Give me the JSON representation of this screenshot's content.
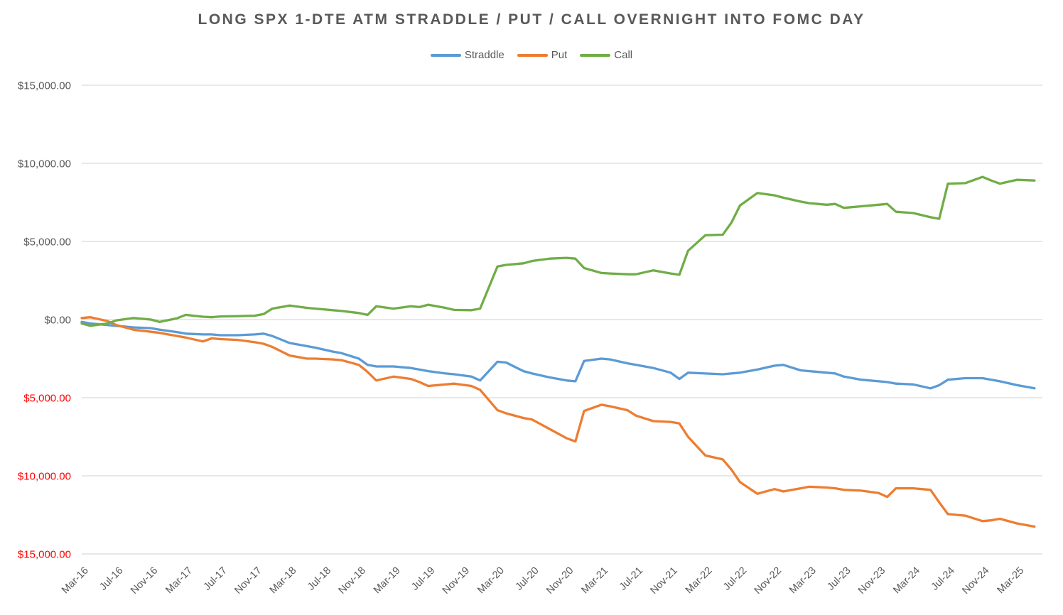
{
  "title": "LONG SPX 1-DTE ATM STRADDLE / PUT / CALL OVERNIGHT INTO FOMC DAY",
  "chart_data": {
    "type": "line",
    "x_unit": "months since Mar-2016 (points approximate FOMC meeting dates)",
    "x": [
      0,
      1,
      3,
      4,
      6,
      8,
      9,
      11,
      12,
      14,
      15,
      16,
      18,
      20,
      21,
      22,
      24,
      26,
      27,
      29,
      30,
      32,
      33,
      34,
      36,
      38,
      39,
      40,
      42,
      43,
      45,
      46,
      48,
      49,
      51,
      52,
      54,
      56,
      57,
      58,
      60,
      61,
      63,
      64,
      66,
      68,
      69,
      70,
      72,
      74,
      75,
      76,
      78,
      80,
      81,
      83,
      84,
      86,
      87,
      88,
      90,
      92,
      93,
      94,
      96,
      98,
      99,
      100,
      102,
      104,
      105,
      106,
      108,
      110
    ],
    "series": [
      {
        "name": "Straddle",
        "color": "#5B9BD5",
        "values": [
          -150,
          -250,
          -350,
          -400,
          -500,
          -550,
          -650,
          -800,
          -900,
          -950,
          -950,
          -1000,
          -1000,
          -950,
          -900,
          -1050,
          -1500,
          -1700,
          -1800,
          -2050,
          -2150,
          -2500,
          -2900,
          -3000,
          -3000,
          -3100,
          -3200,
          -3300,
          -3450,
          -3500,
          -3650,
          -3900,
          -2700,
          -2750,
          -3300,
          -3450,
          -3700,
          -3900,
          -3950,
          -2650,
          -2500,
          -2550,
          -2800,
          -2900,
          -3100,
          -3400,
          -3800,
          -3400,
          -3450,
          -3500,
          -3450,
          -3400,
          -3200,
          -2950,
          -2900,
          -3250,
          -3300,
          -3400,
          -3450,
          -3650,
          -3850,
          -3950,
          -4000,
          -4100,
          -4150,
          -4400,
          -4200,
          -3850,
          -3750,
          -3750,
          -3850,
          -3950,
          -4200,
          -4400
        ]
      },
      {
        "name": "Put",
        "color": "#ED7D31",
        "values": [
          100,
          150,
          -100,
          -350,
          -650,
          -780,
          -850,
          -1050,
          -1150,
          -1400,
          -1200,
          -1250,
          -1300,
          -1450,
          -1550,
          -1750,
          -2300,
          -2500,
          -2500,
          -2550,
          -2600,
          -2900,
          -3350,
          -3900,
          -3650,
          -3800,
          -4000,
          -4250,
          -4150,
          -4100,
          -4250,
          -4500,
          -5800,
          -6000,
          -6300,
          -6400,
          -7000,
          -7600,
          -7800,
          -5850,
          -5450,
          -5550,
          -5800,
          -6150,
          -6500,
          -6550,
          -6650,
          -7500,
          -8700,
          -8950,
          -9600,
          -10400,
          -11150,
          -10850,
          -11000,
          -10800,
          -10700,
          -10750,
          -10800,
          -10900,
          -10950,
          -11100,
          -11350,
          -10800,
          -10800,
          -10900,
          -11700,
          -12450,
          -12550,
          -12900,
          -12850,
          -12750,
          -13050,
          -13250
        ]
      },
      {
        "name": "Call",
        "color": "#70AD47",
        "values": [
          -250,
          -400,
          -250,
          -50,
          100,
          0,
          -150,
          80,
          300,
          180,
          150,
          200,
          220,
          250,
          350,
          700,
          900,
          750,
          700,
          600,
          550,
          420,
          300,
          850,
          700,
          850,
          800,
          950,
          750,
          620,
          600,
          700,
          3400,
          3500,
          3600,
          3750,
          3900,
          3950,
          3900,
          3300,
          2980,
          2950,
          2900,
          2900,
          3150,
          2950,
          2870,
          4400,
          5400,
          5430,
          6200,
          7300,
          8100,
          7950,
          7800,
          7550,
          7450,
          7350,
          7400,
          7150,
          7250,
          7350,
          7400,
          6900,
          6820,
          6550,
          6450,
          8700,
          8730,
          9130,
          8900,
          8700,
          8950,
          8900
        ]
      }
    ],
    "x_tick_months": [
      0,
      4,
      8,
      12,
      16,
      20,
      24,
      28,
      32,
      36,
      40,
      44,
      48,
      52,
      56,
      60,
      64,
      68,
      72,
      76,
      80,
      84,
      88,
      92,
      96,
      100,
      104,
      108
    ],
    "x_tick_labels": [
      "Mar-16",
      "Jul-16",
      "Nov-16",
      "Mar-17",
      "Jul-17",
      "Nov-17",
      "Mar-18",
      "Jul-18",
      "Nov-18",
      "Mar-19",
      "Jul-19",
      "Nov-19",
      "Mar-20",
      "Jul-20",
      "Nov-20",
      "Mar-21",
      "Jul-21",
      "Nov-21",
      "Mar-22",
      "Jul-22",
      "Nov-22",
      "Mar-23",
      "Jul-23",
      "Nov-23",
      "Mar-24",
      "Jul-24",
      "Nov-24",
      "Mar-25"
    ],
    "y_ticks": [
      15000,
      10000,
      5000,
      0,
      -5000,
      -10000,
      -15000
    ],
    "y_tick_labels": [
      "$15,000.00",
      "$10,000.00",
      "$5,000.00",
      "$0.00",
      "$5,000.00",
      "$10,000.00",
      "$15,000.00"
    ],
    "ylim": [
      -15000,
      15000
    ],
    "grid": "horizontal",
    "legend_position": "top",
    "axis_label_color": "#595959",
    "negative_label_color": "#FF0000",
    "gridline_color": "#D9D9D9"
  }
}
